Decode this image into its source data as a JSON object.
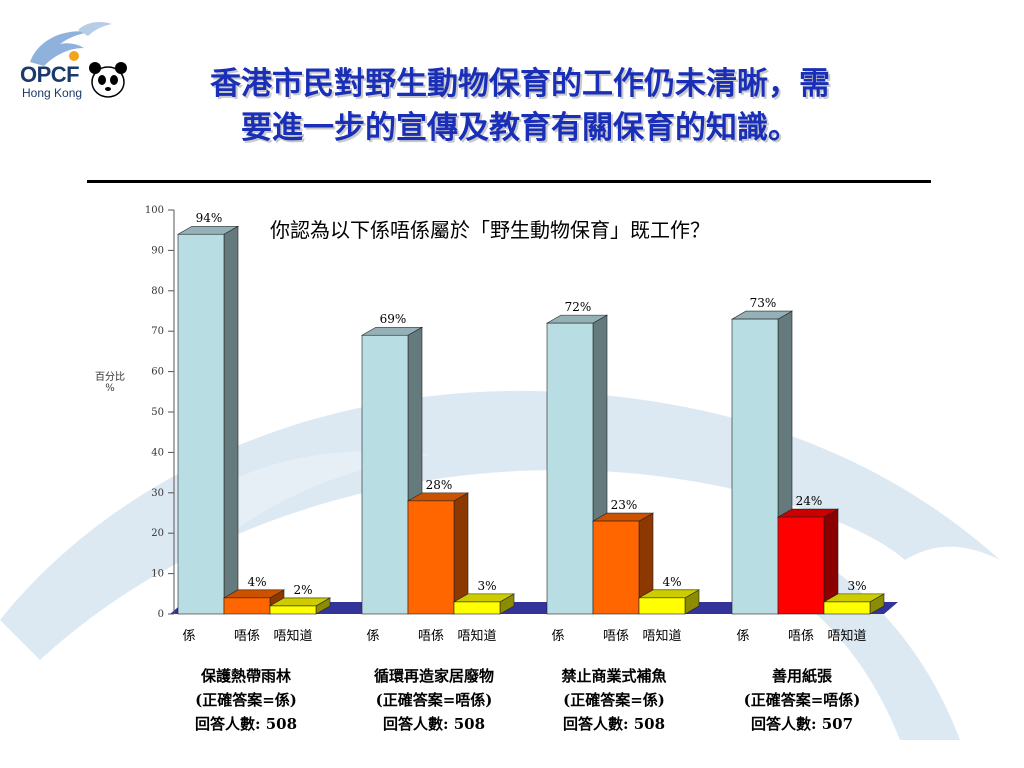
{
  "logo": {
    "name": "OPCF",
    "sub": "Hong Kong"
  },
  "title_lines": [
    "香港市民對野生動物保育的工作仍未清晰，需",
    "要進一步的宣傳及教育有關保育的知識。"
  ],
  "colors": {
    "title": "#1a2fb8",
    "bar_yes": "#b8dde3",
    "bar_no": "#ff6600",
    "bar_no_highlight": "#ff0000",
    "bar_dontknow": "#ffff00",
    "floor": "#333399",
    "background_dolphin": "#dce9f2"
  },
  "chart_data": {
    "type": "bar",
    "title": "你認為以下係唔係屬於「野生動物保育」既工作？",
    "ylabel": "百分比 %",
    "ylim": [
      0,
      100
    ],
    "yticks": [
      "0",
      "10",
      "20",
      "30",
      "40",
      "50",
      "60",
      "70",
      "80",
      "90",
      "100"
    ],
    "groups": [
      {
        "name": "保護熱帶雨林",
        "note": "(正確答案=係)",
        "respondents": "回答人數: 508",
        "categories": [
          "係",
          "唔係",
          "唔知道"
        ],
        "values": [
          94,
          4,
          2
        ],
        "labels": [
          "94%",
          "4%",
          "2%"
        ],
        "highlight": null
      },
      {
        "name": "循環再造家居廢物",
        "note": "(正確答案=唔係)",
        "respondents": "回答人數: 508",
        "categories": [
          "係",
          "唔係",
          "唔知道"
        ],
        "values": [
          69,
          28,
          3
        ],
        "labels": [
          "69%",
          "28%",
          "3%"
        ],
        "highlight": null
      },
      {
        "name": "禁止商業式補魚",
        "note": "(正確答案=係)",
        "respondents": "回答人數: 508",
        "categories": [
          "係",
          "唔係",
          "唔知道"
        ],
        "values": [
          72,
          23,
          4
        ],
        "labels": [
          "72%",
          "23%",
          "4%"
        ],
        "highlight": null
      },
      {
        "name": "善用紙張",
        "note": "(正確答案=唔係)",
        "respondents": "回答人數: 507",
        "categories": [
          "係",
          "唔係",
          "唔知道"
        ],
        "values": [
          73,
          24,
          3
        ],
        "labels": [
          "73%",
          "24%",
          "3%"
        ],
        "highlight": 1
      }
    ]
  }
}
